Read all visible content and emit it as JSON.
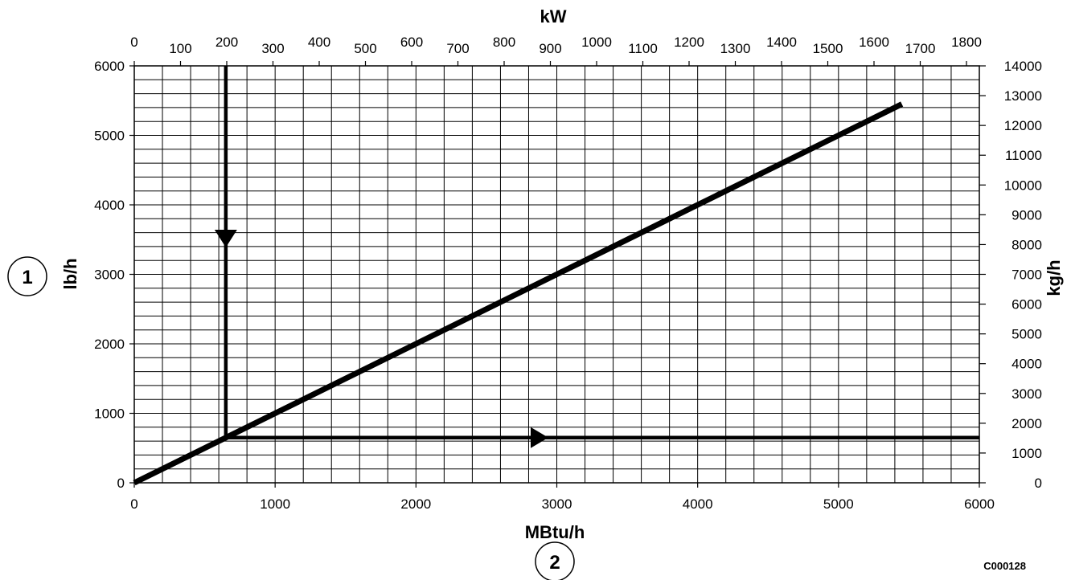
{
  "chart_data": {
    "type": "line",
    "x": {
      "label": "MBtu/h",
      "range": [
        0,
        6000
      ],
      "ticks": [
        0,
        1000,
        2000,
        3000,
        4000,
        5000,
        6000
      ],
      "minor_step": 200
    },
    "x2": {
      "label": "kW",
      "ticks": [
        0,
        100,
        200,
        300,
        400,
        500,
        600,
        700,
        800,
        900,
        1000,
        1100,
        1200,
        1300,
        1400,
        1500,
        1600,
        1700,
        1800
      ]
    },
    "y": {
      "label": "lb/h",
      "range": [
        0,
        6000
      ],
      "ticks": [
        0,
        1000,
        2000,
        3000,
        4000,
        5000,
        6000
      ],
      "minor_step": 200
    },
    "y2": {
      "label": "kg/h",
      "ticks": [
        0,
        1000,
        2000,
        3000,
        4000,
        5000,
        6000,
        7000,
        8000,
        9000,
        10000,
        11000,
        12000,
        13000,
        14000
      ]
    },
    "series": [
      {
        "x": [
          0,
          5450
        ],
        "y": [
          0,
          5450
        ]
      }
    ],
    "example_path": {
      "vertical_x": 650,
      "horizontal_y": 650
    },
    "grid": true
  },
  "callouts": {
    "left": "1",
    "bottom": "2"
  },
  "figure_code": "C000128"
}
